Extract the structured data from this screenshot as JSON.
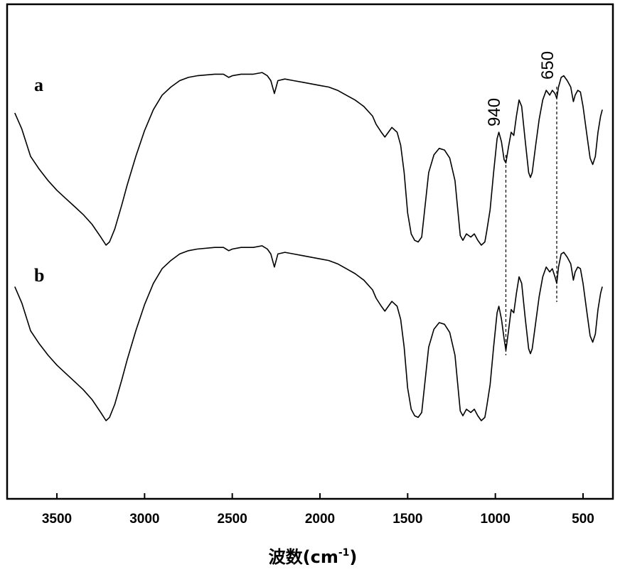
{
  "chart_data": {
    "type": "line",
    "title": "",
    "xlabel": "波数(cm",
    "xlabel_sup": "-1",
    "xlabel_close": ")",
    "ylabel": "",
    "xlim": [
      3750,
      370
    ],
    "x_reversed": true,
    "grid": false,
    "xticks": [
      3500,
      3000,
      2500,
      2000,
      1500,
      1000,
      500
    ],
    "xtick_labels": [
      "3500",
      "3000",
      "2500",
      "2000",
      "1500",
      "1000",
      "500"
    ],
    "annotations": [
      {
        "label": "940",
        "x": 940
      },
      {
        "label": "650",
        "x": 650
      }
    ],
    "series": [
      {
        "name": "a",
        "points": [
          [
            3740,
            0.82
          ],
          [
            3700,
            0.72
          ],
          [
            3650,
            0.55
          ],
          [
            3600,
            0.47
          ],
          [
            3550,
            0.4
          ],
          [
            3500,
            0.34
          ],
          [
            3450,
            0.29
          ],
          [
            3400,
            0.24
          ],
          [
            3350,
            0.19
          ],
          [
            3300,
            0.13
          ],
          [
            3250,
            0.05
          ],
          [
            3220,
            0.0
          ],
          [
            3200,
            0.02
          ],
          [
            3170,
            0.1
          ],
          [
            3130,
            0.25
          ],
          [
            3100,
            0.37
          ],
          [
            3050,
            0.55
          ],
          [
            3000,
            0.71
          ],
          [
            2950,
            0.84
          ],
          [
            2900,
            0.93
          ],
          [
            2850,
            0.98
          ],
          [
            2800,
            1.02
          ],
          [
            2750,
            1.04
          ],
          [
            2700,
            1.05
          ],
          [
            2600,
            1.06
          ],
          [
            2550,
            1.06
          ],
          [
            2520,
            1.04
          ],
          [
            2500,
            1.05
          ],
          [
            2450,
            1.06
          ],
          [
            2380,
            1.06
          ],
          [
            2330,
            1.07
          ],
          [
            2300,
            1.05
          ],
          [
            2280,
            1.02
          ],
          [
            2260,
            0.94
          ],
          [
            2240,
            1.02
          ],
          [
            2200,
            1.03
          ],
          [
            2150,
            1.02
          ],
          [
            2100,
            1.01
          ],
          [
            2000,
            0.99
          ],
          [
            1950,
            0.98
          ],
          [
            1900,
            0.96
          ],
          [
            1850,
            0.93
          ],
          [
            1800,
            0.9
          ],
          [
            1750,
            0.86
          ],
          [
            1700,
            0.8
          ],
          [
            1680,
            0.75
          ],
          [
            1650,
            0.7
          ],
          [
            1630,
            0.67
          ],
          [
            1610,
            0.7
          ],
          [
            1590,
            0.73
          ],
          [
            1560,
            0.7
          ],
          [
            1540,
            0.62
          ],
          [
            1520,
            0.45
          ],
          [
            1500,
            0.2
          ],
          [
            1480,
            0.07
          ],
          [
            1460,
            0.03
          ],
          [
            1440,
            0.02
          ],
          [
            1420,
            0.05
          ],
          [
            1400,
            0.25
          ],
          [
            1380,
            0.45
          ],
          [
            1350,
            0.56
          ],
          [
            1320,
            0.6
          ],
          [
            1290,
            0.59
          ],
          [
            1260,
            0.54
          ],
          [
            1230,
            0.4
          ],
          [
            1210,
            0.17
          ],
          [
            1200,
            0.06
          ],
          [
            1185,
            0.03
          ],
          [
            1165,
            0.07
          ],
          [
            1140,
            0.05
          ],
          [
            1120,
            0.07
          ],
          [
            1100,
            0.03
          ],
          [
            1080,
            0.0
          ],
          [
            1060,
            0.02
          ],
          [
            1050,
            0.08
          ],
          [
            1030,
            0.22
          ],
          [
            1010,
            0.45
          ],
          [
            990,
            0.66
          ],
          [
            980,
            0.7
          ],
          [
            965,
            0.64
          ],
          [
            950,
            0.53
          ],
          [
            940,
            0.51
          ],
          [
            925,
            0.61
          ],
          [
            910,
            0.7
          ],
          [
            895,
            0.68
          ],
          [
            880,
            0.8
          ],
          [
            865,
            0.9
          ],
          [
            850,
            0.86
          ],
          [
            830,
            0.65
          ],
          [
            810,
            0.45
          ],
          [
            800,
            0.42
          ],
          [
            790,
            0.45
          ],
          [
            770,
            0.62
          ],
          [
            750,
            0.78
          ],
          [
            730,
            0.9
          ],
          [
            710,
            0.96
          ],
          [
            690,
            0.93
          ],
          [
            675,
            0.96
          ],
          [
            660,
            0.94
          ],
          [
            650,
            0.91
          ],
          [
            640,
            0.98
          ],
          [
            625,
            1.04
          ],
          [
            610,
            1.05
          ],
          [
            590,
            1.02
          ],
          [
            570,
            0.98
          ],
          [
            555,
            0.89
          ],
          [
            545,
            0.93
          ],
          [
            530,
            0.96
          ],
          [
            515,
            0.95
          ],
          [
            500,
            0.86
          ],
          [
            480,
            0.7
          ],
          [
            460,
            0.54
          ],
          [
            445,
            0.5
          ],
          [
            430,
            0.55
          ],
          [
            415,
            0.7
          ],
          [
            400,
            0.8
          ],
          [
            390,
            0.84
          ]
        ]
      },
      {
        "name": "b",
        "points": [
          [
            3740,
            0.82
          ],
          [
            3700,
            0.72
          ],
          [
            3650,
            0.55
          ],
          [
            3600,
            0.47
          ],
          [
            3550,
            0.4
          ],
          [
            3500,
            0.34
          ],
          [
            3450,
            0.29
          ],
          [
            3400,
            0.24
          ],
          [
            3350,
            0.19
          ],
          [
            3300,
            0.13
          ],
          [
            3250,
            0.05
          ],
          [
            3220,
            0.0
          ],
          [
            3200,
            0.02
          ],
          [
            3170,
            0.1
          ],
          [
            3130,
            0.25
          ],
          [
            3100,
            0.37
          ],
          [
            3050,
            0.55
          ],
          [
            3000,
            0.71
          ],
          [
            2950,
            0.84
          ],
          [
            2900,
            0.93
          ],
          [
            2850,
            0.98
          ],
          [
            2800,
            1.02
          ],
          [
            2750,
            1.04
          ],
          [
            2700,
            1.05
          ],
          [
            2600,
            1.06
          ],
          [
            2550,
            1.06
          ],
          [
            2520,
            1.04
          ],
          [
            2500,
            1.05
          ],
          [
            2450,
            1.06
          ],
          [
            2380,
            1.06
          ],
          [
            2330,
            1.07
          ],
          [
            2300,
            1.05
          ],
          [
            2280,
            1.02
          ],
          [
            2260,
            0.94
          ],
          [
            2240,
            1.02
          ],
          [
            2200,
            1.03
          ],
          [
            2150,
            1.02
          ],
          [
            2100,
            1.01
          ],
          [
            2000,
            0.99
          ],
          [
            1950,
            0.98
          ],
          [
            1900,
            0.96
          ],
          [
            1850,
            0.93
          ],
          [
            1800,
            0.9
          ],
          [
            1750,
            0.86
          ],
          [
            1700,
            0.8
          ],
          [
            1680,
            0.75
          ],
          [
            1650,
            0.7
          ],
          [
            1630,
            0.67
          ],
          [
            1610,
            0.7
          ],
          [
            1590,
            0.73
          ],
          [
            1560,
            0.7
          ],
          [
            1540,
            0.62
          ],
          [
            1520,
            0.45
          ],
          [
            1500,
            0.2
          ],
          [
            1480,
            0.07
          ],
          [
            1460,
            0.03
          ],
          [
            1440,
            0.02
          ],
          [
            1420,
            0.05
          ],
          [
            1400,
            0.25
          ],
          [
            1380,
            0.45
          ],
          [
            1350,
            0.56
          ],
          [
            1320,
            0.6
          ],
          [
            1290,
            0.59
          ],
          [
            1260,
            0.54
          ],
          [
            1230,
            0.4
          ],
          [
            1210,
            0.17
          ],
          [
            1200,
            0.06
          ],
          [
            1185,
            0.03
          ],
          [
            1165,
            0.07
          ],
          [
            1140,
            0.05
          ],
          [
            1120,
            0.07
          ],
          [
            1100,
            0.03
          ],
          [
            1080,
            0.0
          ],
          [
            1060,
            0.02
          ],
          [
            1050,
            0.08
          ],
          [
            1030,
            0.22
          ],
          [
            1010,
            0.45
          ],
          [
            990,
            0.66
          ],
          [
            980,
            0.7
          ],
          [
            965,
            0.62
          ],
          [
            950,
            0.5
          ],
          [
            940,
            0.43
          ],
          [
            925,
            0.55
          ],
          [
            910,
            0.68
          ],
          [
            895,
            0.66
          ],
          [
            880,
            0.78
          ],
          [
            865,
            0.88
          ],
          [
            850,
            0.84
          ],
          [
            830,
            0.63
          ],
          [
            810,
            0.44
          ],
          [
            800,
            0.41
          ],
          [
            790,
            0.44
          ],
          [
            770,
            0.6
          ],
          [
            750,
            0.76
          ],
          [
            730,
            0.88
          ],
          [
            710,
            0.94
          ],
          [
            690,
            0.91
          ],
          [
            675,
            0.93
          ],
          [
            660,
            0.88
          ],
          [
            650,
            0.84
          ],
          [
            640,
            0.94
          ],
          [
            625,
            1.02
          ],
          [
            610,
            1.03
          ],
          [
            590,
            1.0
          ],
          [
            570,
            0.96
          ],
          [
            555,
            0.86
          ],
          [
            545,
            0.91
          ],
          [
            530,
            0.94
          ],
          [
            515,
            0.93
          ],
          [
            500,
            0.84
          ],
          [
            480,
            0.68
          ],
          [
            460,
            0.52
          ],
          [
            445,
            0.48
          ],
          [
            430,
            0.53
          ],
          [
            415,
            0.68
          ],
          [
            400,
            0.78
          ],
          [
            390,
            0.82
          ]
        ]
      }
    ]
  }
}
